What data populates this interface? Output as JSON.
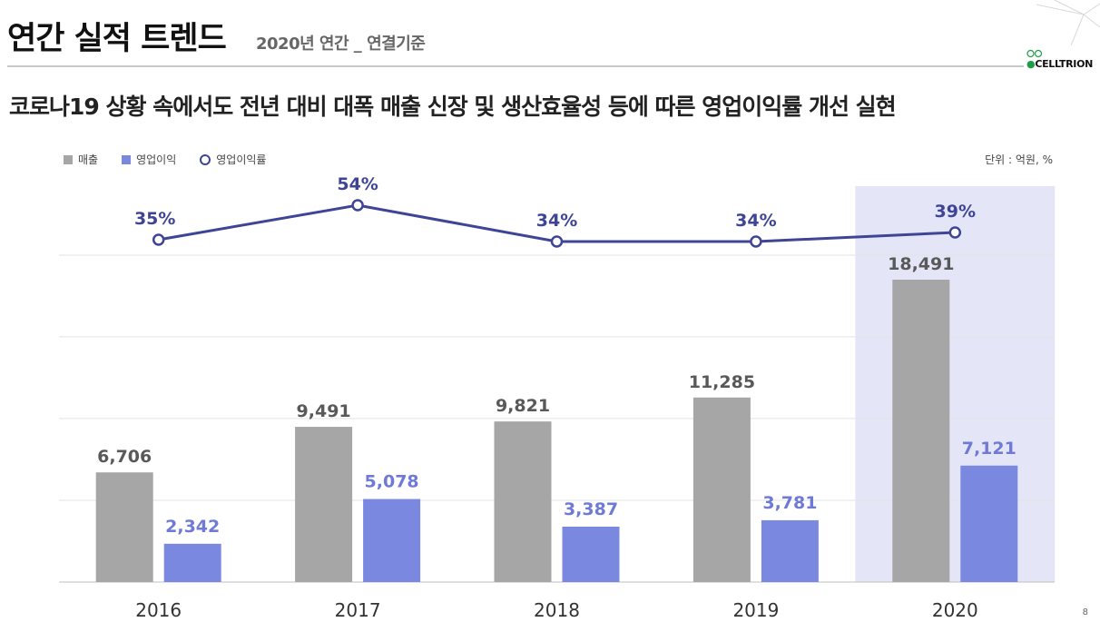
{
  "header": {
    "title": "연간 실적 트렌드",
    "subtitle": "2020년 연간 _ 연결기준"
  },
  "logo": {
    "prefix": "●",
    "text": "CELLTRION"
  },
  "headline": "코로나19 상황 속에서도 전년 대비 대폭 매출 신장 및 생산효율성 등에 따른 영업이익률 개선 실현",
  "legend": {
    "revenue": "매출",
    "operating_profit": "영업이익",
    "margin": "영업이익률"
  },
  "unit_label": "단위 : 억원, %",
  "page_number": "8",
  "colors": {
    "revenue": "#a6a6a6",
    "operating_profit": "#7b88e0",
    "margin_line": "#3f4596",
    "highlight": "#e4e6f7"
  },
  "chart_data": {
    "type": "bar",
    "title": "연간 실적 트렌드",
    "categories": [
      "2016",
      "2017",
      "2018",
      "2019",
      "2020"
    ],
    "series": [
      {
        "name": "매출",
        "type": "bar",
        "values": [
          6706,
          9491,
          9821,
          11285,
          18491
        ],
        "labels": [
          "6,706",
          "9,491",
          "9,821",
          "11,285",
          "18,491"
        ]
      },
      {
        "name": "영업이익",
        "type": "bar",
        "values": [
          2342,
          5078,
          3387,
          3781,
          7121
        ],
        "labels": [
          "2,342",
          "5,078",
          "3,387",
          "3,781",
          "7,121"
        ]
      },
      {
        "name": "영업이익률",
        "type": "line",
        "values": [
          35,
          54,
          34,
          34,
          39
        ],
        "labels": [
          "35%",
          "54%",
          "34%",
          "34%",
          "39%"
        ]
      }
    ],
    "highlight_category": "2020",
    "ylim": [
      0,
      20000
    ],
    "grid": true,
    "unit": "억원, %"
  }
}
